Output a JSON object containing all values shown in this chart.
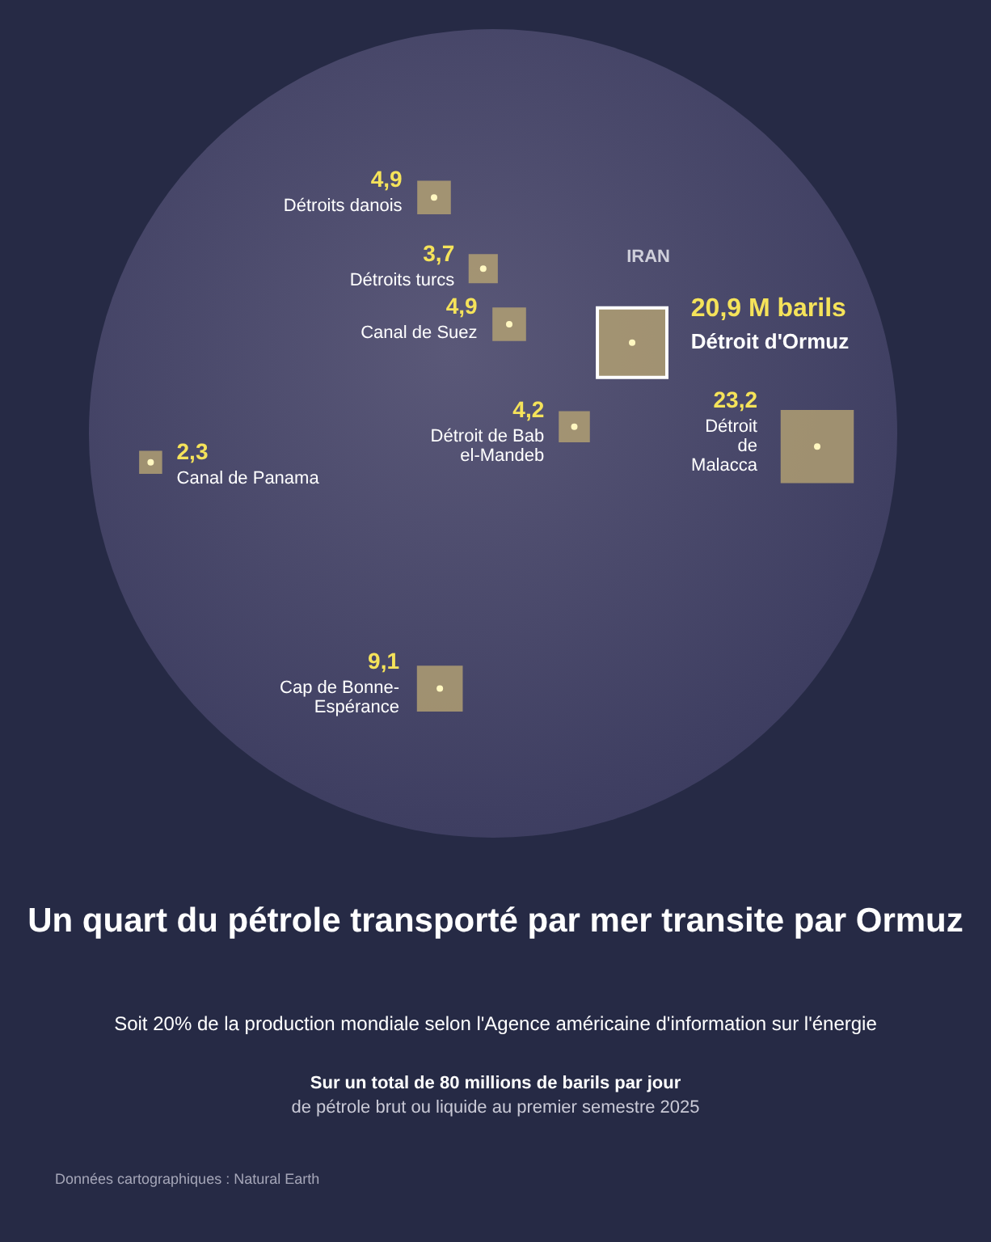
{
  "chart_data": {
    "type": "other",
    "title": "Un quart du pétrole transporté par mer transite par Ormuz",
    "subtitle": "Soit 20% de la production mondiale selon l'Agence américaine d'information sur l'énergie",
    "categories": [
      "Détroits danois",
      "Détroits turcs",
      "Canal de Suez",
      "Détroit d'Ormuz",
      "Détroit de Bab el-Mandeb",
      "Détroit de Malacca",
      "Canal de Panama",
      "Cap de Bonne-Espérance"
    ],
    "values": [
      4.9,
      3.7,
      4.9,
      20.9,
      4.2,
      23.2,
      2.3,
      9.1
    ],
    "value_labels": [
      "4,9",
      "3,7",
      "4,9",
      "20,9 M barils",
      "4,2",
      "23,2",
      "2,3",
      "9,1"
    ],
    "color": "#b6a473",
    "annotations": [
      "IRAN",
      "Sur un total de 80 millions de barils par jour",
      "de pétrole brut ou liquide au premier semestre 2025",
      "Données cartographiques : Natural Earth"
    ]
  }
}
